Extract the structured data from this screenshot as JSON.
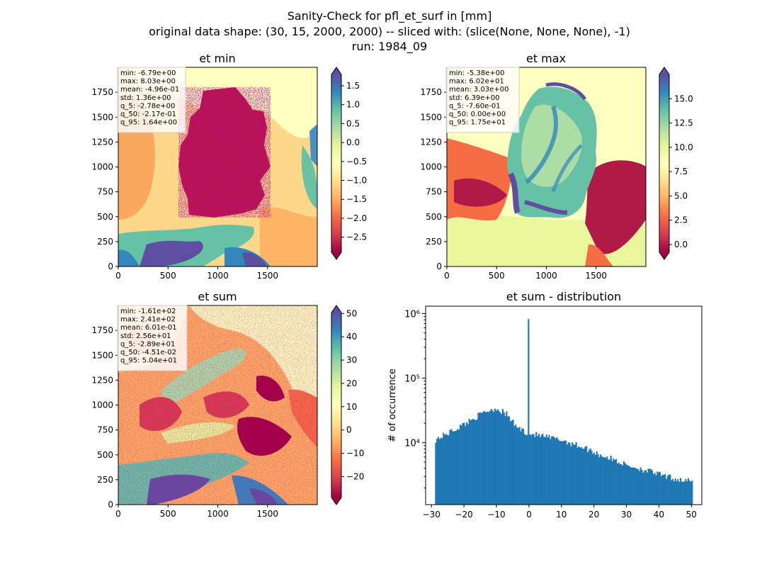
{
  "suptitle": [
    "Sanity-Check for pfl_et_surf in [mm]",
    "original data shape: (30, 15, 2000, 2000) -- sliced with: (slice(None, None, None), -1)",
    "run: 1984_09"
  ],
  "chart_data": [
    {
      "type": "heatmap",
      "title": "et min",
      "x_ticks": [
        "0",
        "500",
        "1000",
        "1500"
      ],
      "y_ticks": [
        "0",
        "250",
        "500",
        "750",
        "1000",
        "1250",
        "1500",
        "1750"
      ],
      "xlim": [
        0,
        2000
      ],
      "ylim": [
        0,
        2000
      ],
      "colormap": "Spectral",
      "colorbar_range": [
        -2.9,
        1.8
      ],
      "colorbar_ticks": [
        "1.5",
        "1.0",
        "0.5",
        "0.0",
        "−0.5",
        "−1.0",
        "−1.5",
        "−2.0",
        "−2.5"
      ],
      "colorbar_tick_values": [
        1.5,
        1.0,
        0.5,
        0.0,
        -0.5,
        -1.0,
        -1.5,
        -2.0,
        -2.5
      ],
      "stats": [
        "min: -6.79e+00",
        "max: 8.03e+00",
        "mean: -4.96e-01",
        "std: 1.36e+00",
        "q_5: -2.78e+00",
        "q_50: -2.17e-01",
        "q_95: 1.64e+00"
      ]
    },
    {
      "type": "heatmap",
      "title": "et max",
      "x_ticks": [
        "0",
        "500",
        "1000",
        "1500"
      ],
      "y_ticks": [
        "0",
        "250",
        "500",
        "750",
        "1000",
        "1250",
        "1500",
        "1750"
      ],
      "xlim": [
        0,
        2000
      ],
      "ylim": [
        0,
        2000
      ],
      "colormap": "Spectral",
      "colorbar_range": [
        -0.8,
        17.5
      ],
      "colorbar_ticks": [
        "15.0",
        "12.5",
        "10.0",
        "7.5",
        "5.0",
        "2.5",
        "0.0"
      ],
      "colorbar_tick_values": [
        15.0,
        12.5,
        10.0,
        7.5,
        5.0,
        2.5,
        0.0
      ],
      "stats": [
        "min: -5.38e+00",
        "max: 6.02e+01",
        "mean: 3.03e+00",
        "std: 6.39e+00",
        "q_5: -7.60e-01",
        "q_50: 0.00e+00",
        "q_95: 1.75e+01"
      ]
    },
    {
      "type": "heatmap",
      "title": "et sum",
      "x_ticks": [
        "0",
        "500",
        "1000",
        "1500"
      ],
      "y_ticks": [
        "0",
        "250",
        "500",
        "750",
        "1000",
        "1250",
        "1500",
        "1750"
      ],
      "xlim": [
        0,
        2000
      ],
      "ylim": [
        0,
        2000
      ],
      "colormap": "Spectral",
      "colorbar_range": [
        -29,
        50.4
      ],
      "colorbar_ticks": [
        "50",
        "40",
        "30",
        "20",
        "10",
        "0",
        "−10",
        "−20"
      ],
      "colorbar_tick_values": [
        50,
        40,
        30,
        20,
        10,
        0,
        -10,
        -20
      ],
      "stats": [
        "min: -1.61e+02",
        "max: 2.41e+02",
        "mean: 6.01e-01",
        "std: 2.56e+01",
        "q_5: -2.89e+01",
        "q_50: -4.51e-02",
        "q_95: 5.04e+01"
      ]
    },
    {
      "type": "bar",
      "title": "et sum - distribution",
      "ylabel": "# of occurrence",
      "xlabel": "",
      "yscale": "log",
      "xlim": [
        -31.8,
        53.2
      ],
      "ylim": [
        1100,
        1300000
      ],
      "x_ticks": [
        "−30",
        "−20",
        "−10",
        "0",
        "10",
        "20",
        "30",
        "40",
        "50"
      ],
      "x_tick_values": [
        -30,
        -20,
        -10,
        0,
        10,
        20,
        30,
        40,
        50
      ],
      "y_ticks": [
        "10⁴",
        "10⁵",
        "10⁶"
      ],
      "y_tick_values": [
        10000,
        100000,
        1000000
      ],
      "bar_color": "#1f77b4",
      "bins_range": [
        -28.9,
        50.4
      ],
      "bin_count": 200,
      "profile": [
        [
          -28.9,
          11000
        ],
        [
          -25,
          14000
        ],
        [
          -21,
          18000
        ],
        [
          -17,
          24000
        ],
        [
          -13,
          31000
        ],
        [
          -10,
          34000
        ],
        [
          -7,
          28000
        ],
        [
          -4,
          18000
        ],
        [
          -1.5,
          15000
        ],
        [
          0,
          14000
        ],
        [
          3,
          13000
        ],
        [
          6,
          12000
        ],
        [
          10,
          11000
        ],
        [
          14,
          9500
        ],
        [
          18,
          8000
        ],
        [
          22,
          6500
        ],
        [
          26,
          5500
        ],
        [
          30,
          4500
        ],
        [
          34,
          4000
        ],
        [
          38,
          3500
        ],
        [
          42,
          3000
        ],
        [
          46,
          2700
        ],
        [
          50.4,
          2500
        ]
      ],
      "spike": {
        "x": -0.1,
        "value": 820000
      }
    }
  ]
}
